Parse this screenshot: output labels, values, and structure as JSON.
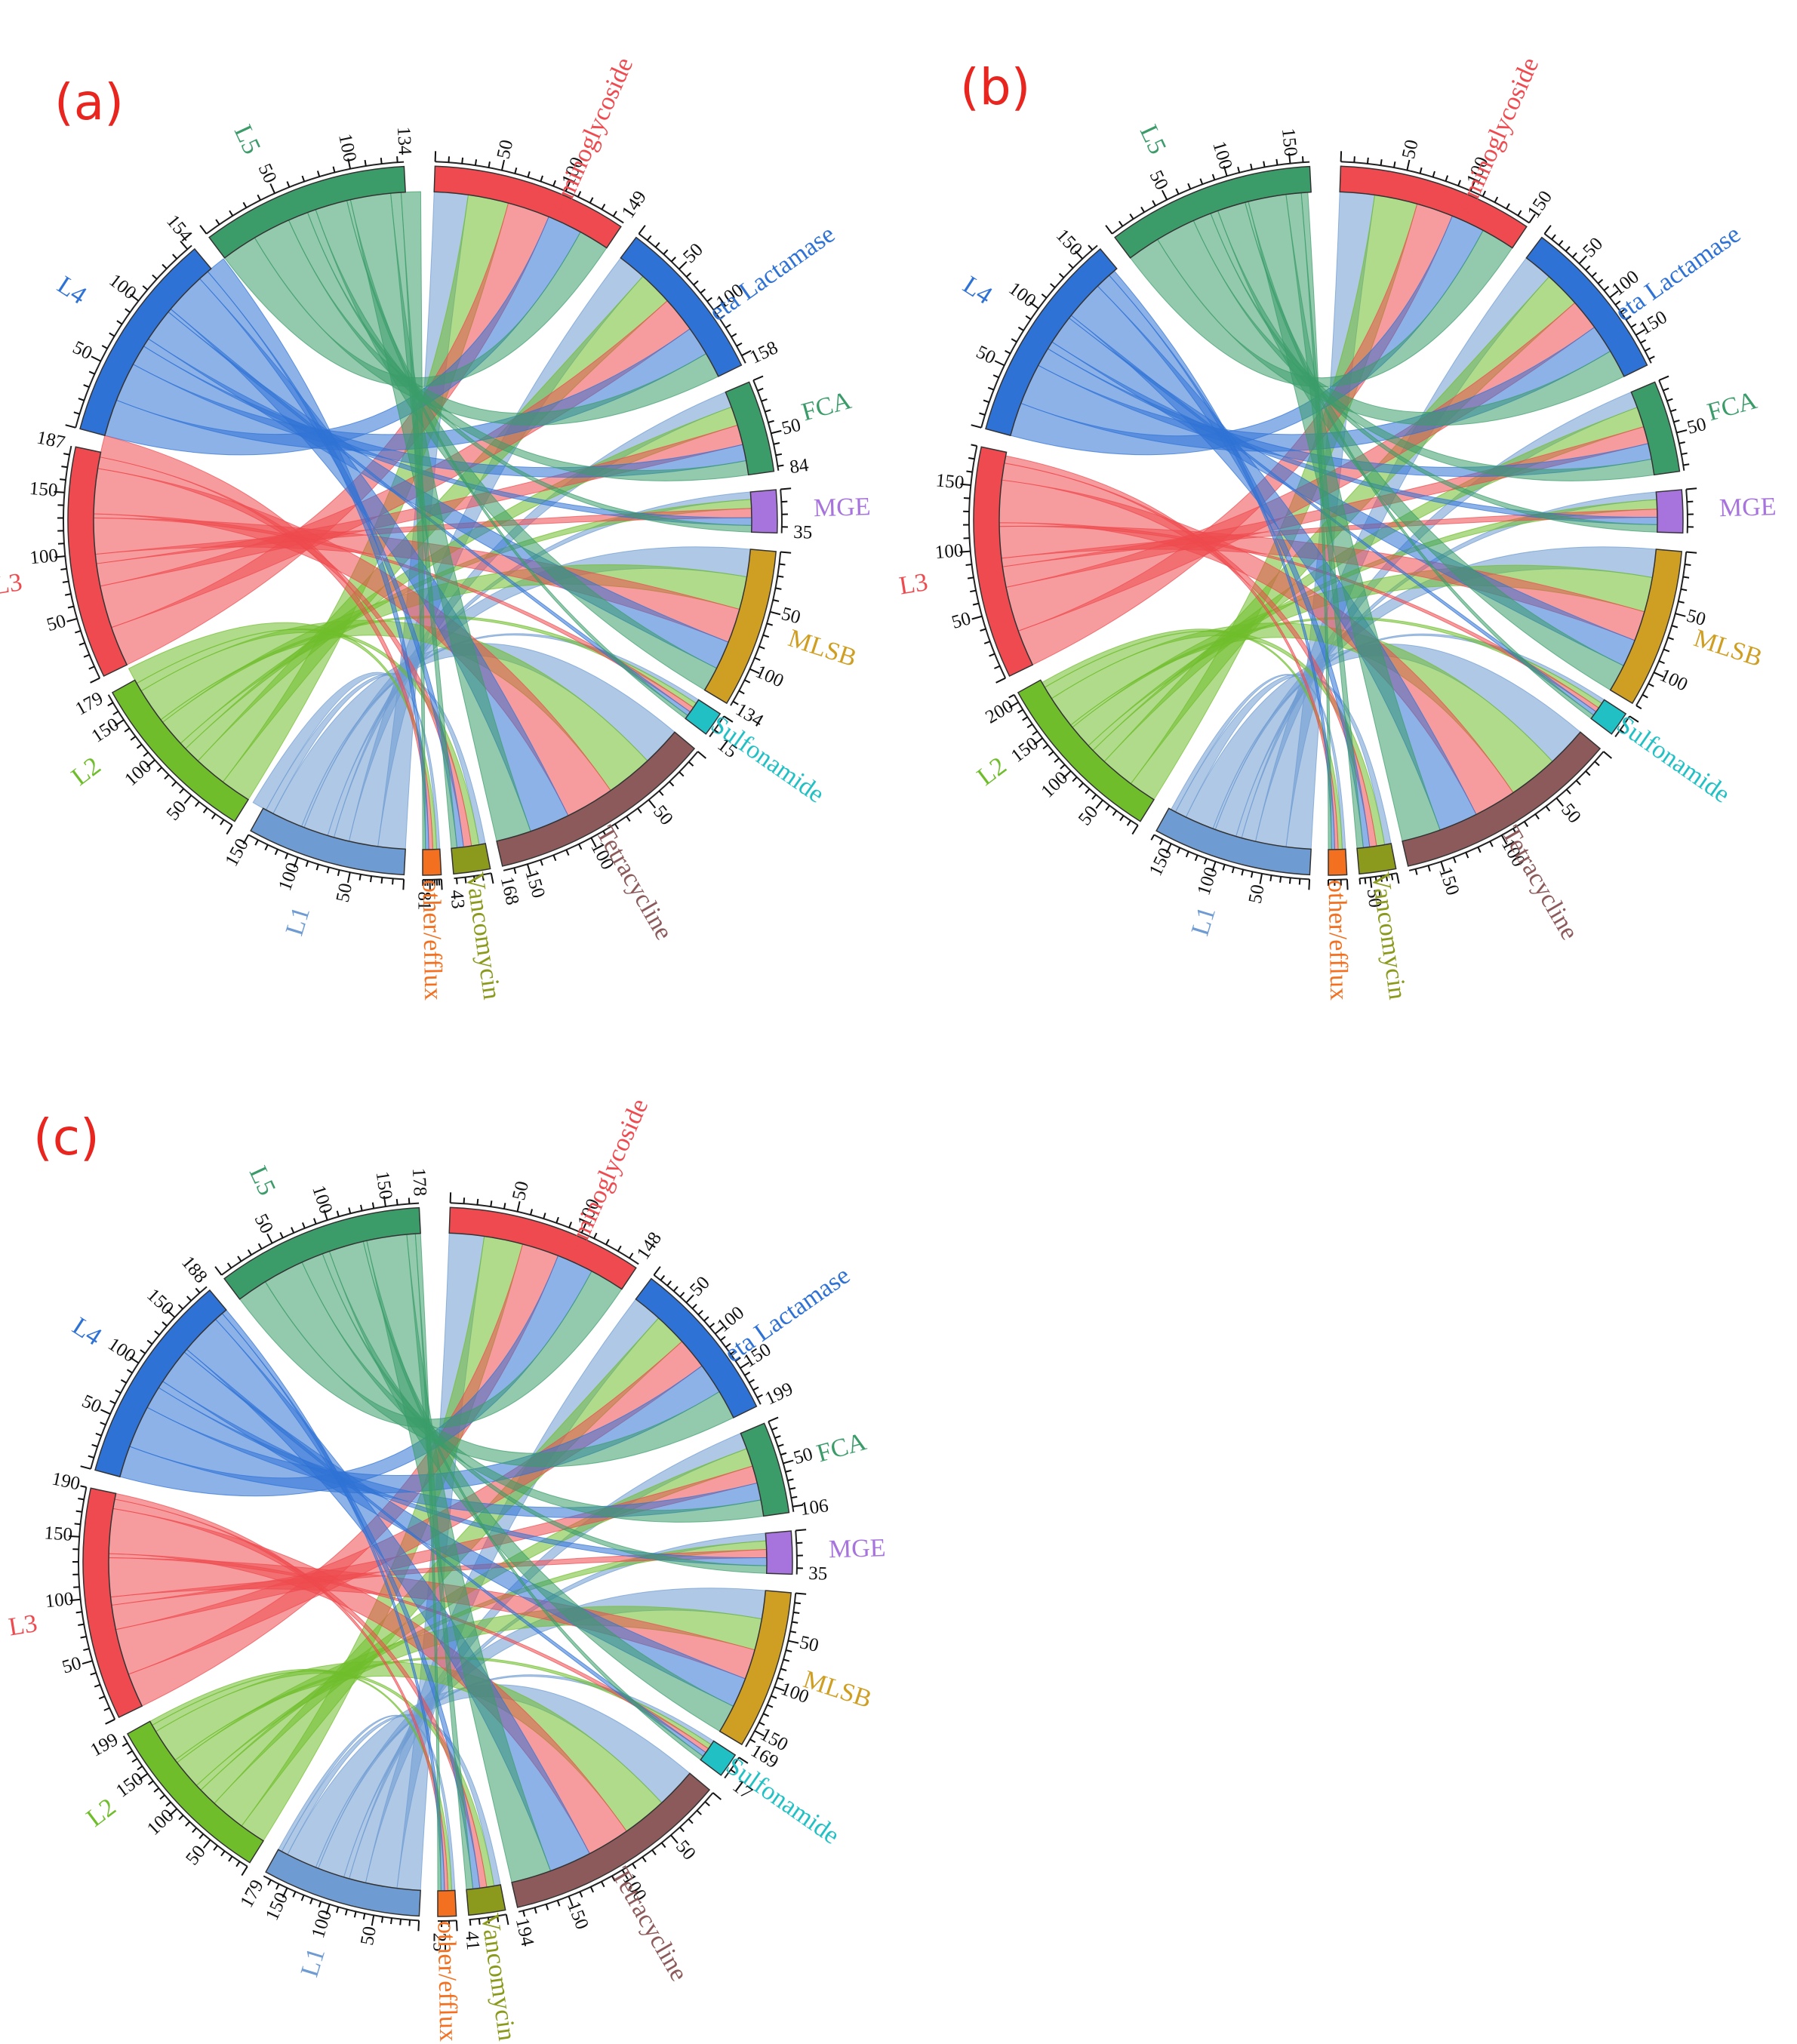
{
  "figure": {
    "panels": [
      "(a)",
      "(b)",
      "(c)"
    ]
  },
  "sector_colors": {
    "Aminoglycoside": "#ee4a4f",
    "Beta Lactamase": "#2f72d6",
    "FCA": "#3b9c6a",
    "MGE": "#a674dc",
    "MLSB": "#cf9f23",
    "Sulfonamide": "#20c0c4",
    "Tetracycline": "#8c5a5a",
    "Vancomycin": "#8b9a1d",
    "other/efflux": "#f2701f",
    "L1": "#6e9bd1",
    "L2": "#6fbd2b",
    "L3": "#ee4a4f",
    "L4": "#2f72d6",
    "L5": "#3b9c6a"
  },
  "chart_data": [
    {
      "type": "chord",
      "panel": "(a)",
      "sectors": [
        {
          "name": "Aminoglycoside",
          "total": 149,
          "ticks": [
            "50",
            "100",
            "149"
          ]
        },
        {
          "name": "Beta Lactamase",
          "total": 158,
          "ticks": [
            "50",
            "100",
            "158"
          ]
        },
        {
          "name": "FCA",
          "total": 84,
          "ticks": [
            "50",
            "84"
          ]
        },
        {
          "name": "MGE",
          "total": 35,
          "ticks": [
            "35"
          ]
        },
        {
          "name": "MLSB",
          "total": 134,
          "ticks": [
            "50",
            "100",
            "134"
          ]
        },
        {
          "name": "Sulfonamide",
          "total": 15,
          "ticks": [
            "15"
          ]
        },
        {
          "name": "Tetracycline",
          "total": 168,
          "ticks": [
            "50",
            "100",
            "150",
            "168"
          ]
        },
        {
          "name": "Vancomycin",
          "total": 43,
          "ticks": [
            "43"
          ]
        },
        {
          "name": "other/efflux",
          "total": 81,
          "ticks": [
            "81"
          ]
        },
        {
          "name": "L1",
          "total": 150,
          "ticks": [
            "50",
            "100",
            "150"
          ]
        },
        {
          "name": "L2",
          "total": 179,
          "ticks": [
            "50",
            "100",
            "150",
            "179"
          ]
        },
        {
          "name": "L3",
          "total": 187,
          "ticks": [
            "50",
            "100",
            "150",
            "187"
          ]
        },
        {
          "name": "L4",
          "total": 154,
          "ticks": [
            "50",
            "100",
            "154"
          ]
        },
        {
          "name": "L5",
          "total": 134,
          "ticks": [
            "50",
            "100",
            "134"
          ]
        }
      ]
    },
    {
      "type": "chord",
      "panel": "(b)",
      "sectors": [
        {
          "name": "Aminoglycoside",
          "total": 150,
          "ticks": [
            "50",
            "100",
            "150"
          ]
        },
        {
          "name": "Beta Lactamase",
          "total": 185,
          "ticks": [
            "50",
            "100",
            "150"
          ]
        },
        {
          "name": "FCA",
          "total": 85,
          "ticks": [
            "50"
          ]
        },
        {
          "name": "MGE",
          "total": 35,
          "ticks": []
        },
        {
          "name": "MLSB",
          "total": 130,
          "ticks": [
            "50",
            "100"
          ]
        },
        {
          "name": "Sulfonamide",
          "total": 15,
          "ticks": []
        },
        {
          "name": "Tetracycline",
          "total": 175,
          "ticks": [
            "50",
            "100",
            "150"
          ]
        },
        {
          "name": "Vancomycin",
          "total": 70,
          "ticks": [
            "50"
          ]
        },
        {
          "name": "other/efflux",
          "total": 30,
          "ticks": []
        },
        {
          "name": "L1",
          "total": 170,
          "ticks": [
            "50",
            "100",
            "150"
          ]
        },
        {
          "name": "L2",
          "total": 210,
          "ticks": [
            "50",
            "100",
            "150",
            "200"
          ]
        },
        {
          "name": "L3",
          "total": 180,
          "ticks": [
            "50",
            "100",
            "150"
          ]
        },
        {
          "name": "L4",
          "total": 165,
          "ticks": [
            "50",
            "100",
            "150"
          ]
        },
        {
          "name": "L5",
          "total": 165,
          "ticks": [
            "50",
            "100",
            "150"
          ]
        }
      ]
    },
    {
      "type": "chord",
      "panel": "(c)",
      "sectors": [
        {
          "name": "Aminoglycoside",
          "total": 148,
          "ticks": [
            "50",
            "100",
            "148"
          ]
        },
        {
          "name": "Beta Lactamase",
          "total": 199,
          "ticks": [
            "50",
            "100",
            "150",
            "199"
          ]
        },
        {
          "name": "FCA",
          "total": 106,
          "ticks": [
            "50",
            "106"
          ]
        },
        {
          "name": "MGE",
          "total": 35,
          "ticks": [
            "35"
          ]
        },
        {
          "name": "MLSB",
          "total": 169,
          "ticks": [
            "50",
            "100",
            "150",
            "169"
          ]
        },
        {
          "name": "Sulfonamide",
          "total": 17,
          "ticks": [
            "17"
          ]
        },
        {
          "name": "Tetracycline",
          "total": 194,
          "ticks": [
            "50",
            "100",
            "150",
            "194"
          ]
        },
        {
          "name": "Vancomycin",
          "total": 41,
          "ticks": [
            "41"
          ]
        },
        {
          "name": "other/efflux",
          "total": 25,
          "ticks": [
            "25"
          ]
        },
        {
          "name": "L1",
          "total": 179,
          "ticks": [
            "50",
            "100",
            "150",
            "179"
          ]
        },
        {
          "name": "L2",
          "total": 199,
          "ticks": [
            "50",
            "100",
            "150",
            "199"
          ]
        },
        {
          "name": "L3",
          "total": 190,
          "ticks": [
            "50",
            "100",
            "150",
            "190"
          ]
        },
        {
          "name": "L4",
          "total": 188,
          "ticks": [
            "50",
            "100",
            "150",
            "188"
          ]
        },
        {
          "name": "L5",
          "total": 178,
          "ticks": [
            "50",
            "100",
            "150",
            "178"
          ]
        }
      ]
    }
  ]
}
